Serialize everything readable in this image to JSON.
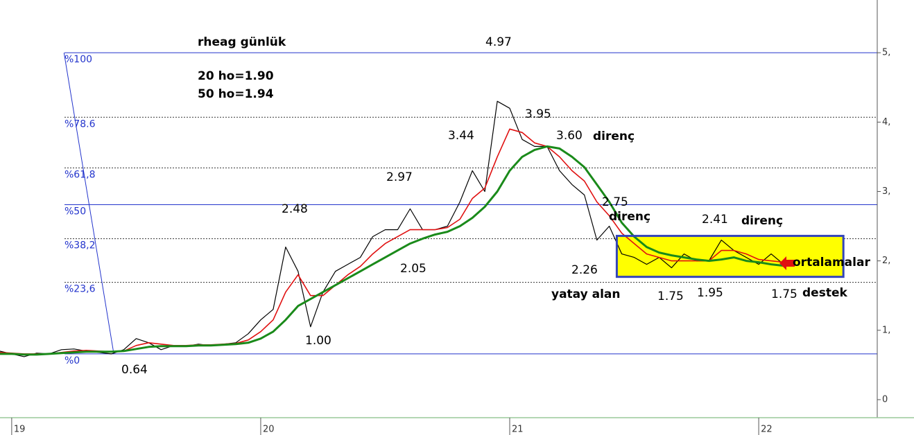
{
  "chart_data": {
    "type": "line",
    "xlim": [
      18.953,
      22.476
    ],
    "ylim": [
      -0.23,
      5.76
    ],
    "xticks": [
      19,
      20,
      21,
      22
    ],
    "yticks": [
      0,
      {
        "value": 1,
        "label": "1,"
      },
      {
        "value": 2,
        "label": "2,"
      },
      {
        "value": 3,
        "label": "3,"
      },
      {
        "value": 4,
        "label": "4,"
      },
      {
        "value": 5,
        "label": "5,"
      }
    ],
    "x": [
      18.95,
      19.0,
      19.05,
      19.1,
      19.15,
      19.2,
      19.25,
      19.3,
      19.35,
      19.4,
      19.45,
      19.5,
      19.55,
      19.6,
      19.65,
      19.7,
      19.75,
      19.8,
      19.85,
      19.9,
      19.95,
      20.0,
      20.05,
      20.1,
      20.15,
      20.2,
      20.25,
      20.3,
      20.35,
      20.4,
      20.45,
      20.5,
      20.55,
      20.6,
      20.65,
      20.7,
      20.75,
      20.8,
      20.85,
      20.9,
      20.95,
      21.0,
      21.05,
      21.1,
      21.15,
      21.2,
      21.25,
      21.3,
      21.35,
      21.4,
      21.45,
      21.5,
      21.55,
      21.6,
      21.65,
      21.7,
      21.75,
      21.8,
      21.85,
      21.9,
      21.95,
      22.0,
      22.05,
      22.1
    ],
    "series": [
      {
        "color": "#000000",
        "values": [
          0.7,
          0.66,
          0.62,
          0.67,
          0.66,
          0.72,
          0.73,
          0.7,
          0.68,
          0.66,
          0.72,
          0.88,
          0.82,
          0.72,
          0.78,
          0.77,
          0.8,
          0.78,
          0.8,
          0.82,
          0.95,
          1.15,
          1.3,
          2.2,
          1.85,
          1.05,
          1.55,
          1.85,
          1.95,
          2.05,
          2.35,
          2.45,
          2.45,
          2.75,
          2.45,
          2.45,
          2.5,
          2.85,
          3.3,
          3.0,
          4.3,
          4.2,
          3.75,
          3.65,
          3.65,
          3.3,
          3.1,
          2.95,
          2.3,
          2.5,
          2.1,
          2.05,
          1.95,
          2.05,
          1.9,
          2.1,
          2.0,
          2.0,
          2.3,
          2.15,
          2.05,
          1.95,
          2.1,
          1.95
        ]
      },
      {
        "color": "#e01010",
        "values": [
          0.68,
          0.67,
          0.66,
          0.66,
          0.66,
          0.68,
          0.7,
          0.71,
          0.7,
          0.69,
          0.7,
          0.78,
          0.82,
          0.8,
          0.78,
          0.78,
          0.79,
          0.79,
          0.8,
          0.81,
          0.86,
          0.98,
          1.15,
          1.55,
          1.8,
          1.5,
          1.5,
          1.65,
          1.8,
          1.92,
          2.1,
          2.25,
          2.35,
          2.45,
          2.45,
          2.45,
          2.48,
          2.6,
          2.9,
          3.05,
          3.5,
          3.9,
          3.85,
          3.7,
          3.65,
          3.5,
          3.3,
          3.15,
          2.85,
          2.65,
          2.4,
          2.25,
          2.1,
          2.05,
          2.0,
          2.0,
          2.0,
          2.0,
          2.15,
          2.15,
          2.1,
          2.02,
          2.0,
          1.98
        ]
      },
      {
        "color": "#1a8a1a",
        "values": [
          0.66,
          0.66,
          0.65,
          0.65,
          0.66,
          0.67,
          0.68,
          0.69,
          0.69,
          0.69,
          0.7,
          0.73,
          0.76,
          0.77,
          0.77,
          0.77,
          0.78,
          0.78,
          0.79,
          0.8,
          0.82,
          0.88,
          0.98,
          1.15,
          1.35,
          1.45,
          1.55,
          1.65,
          1.75,
          1.85,
          1.95,
          2.05,
          2.15,
          2.25,
          2.32,
          2.38,
          2.42,
          2.5,
          2.62,
          2.78,
          3.0,
          3.3,
          3.5,
          3.6,
          3.65,
          3.62,
          3.5,
          3.35,
          3.1,
          2.85,
          2.55,
          2.35,
          2.2,
          2.12,
          2.08,
          2.05,
          2.02,
          2.0,
          2.02,
          2.05,
          2.0,
          1.98,
          1.95,
          1.93
        ]
      }
    ],
    "fib_levels": [
      {
        "label": "%100",
        "value": 5.0,
        "solid": true
      },
      {
        "label": "%78.6",
        "value": 4.07,
        "solid": false
      },
      {
        "label": "%61,8",
        "value": 3.34,
        "solid": false
      },
      {
        "label": "%50",
        "value": 2.81,
        "solid": true
      },
      {
        "label": "%38,2",
        "value": 2.32,
        "solid": false
      },
      {
        "label": "%23,6",
        "value": 1.69,
        "solid": false
      },
      {
        "label": "%0",
        "value": 0.66,
        "solid": true
      }
    ],
    "fib_color": "#2233cc",
    "trendline": {
      "x": [
        19.21,
        19.41
      ],
      "y": [
        5.0,
        0.66
      ]
    },
    "zone": {
      "x": [
        21.43,
        22.34
      ],
      "y": [
        1.77,
        2.36
      ],
      "fill": "#ffff00",
      "stroke": "#3344bb"
    },
    "annotations": [
      "rheag günlük",
      "20 ho=1.90",
      "50 ho=1.94",
      "4.97",
      "3.95",
      "3.44",
      "3.60",
      "direnç",
      "2.97",
      "2.48",
      "2.75",
      "direnç",
      "2.41",
      "direnç",
      "2.26",
      "2.05",
      "yatay alan",
      "1.75",
      "1.95",
      "1.75",
      "destek",
      "1.00",
      "0.64",
      "ortalamalar"
    ]
  }
}
